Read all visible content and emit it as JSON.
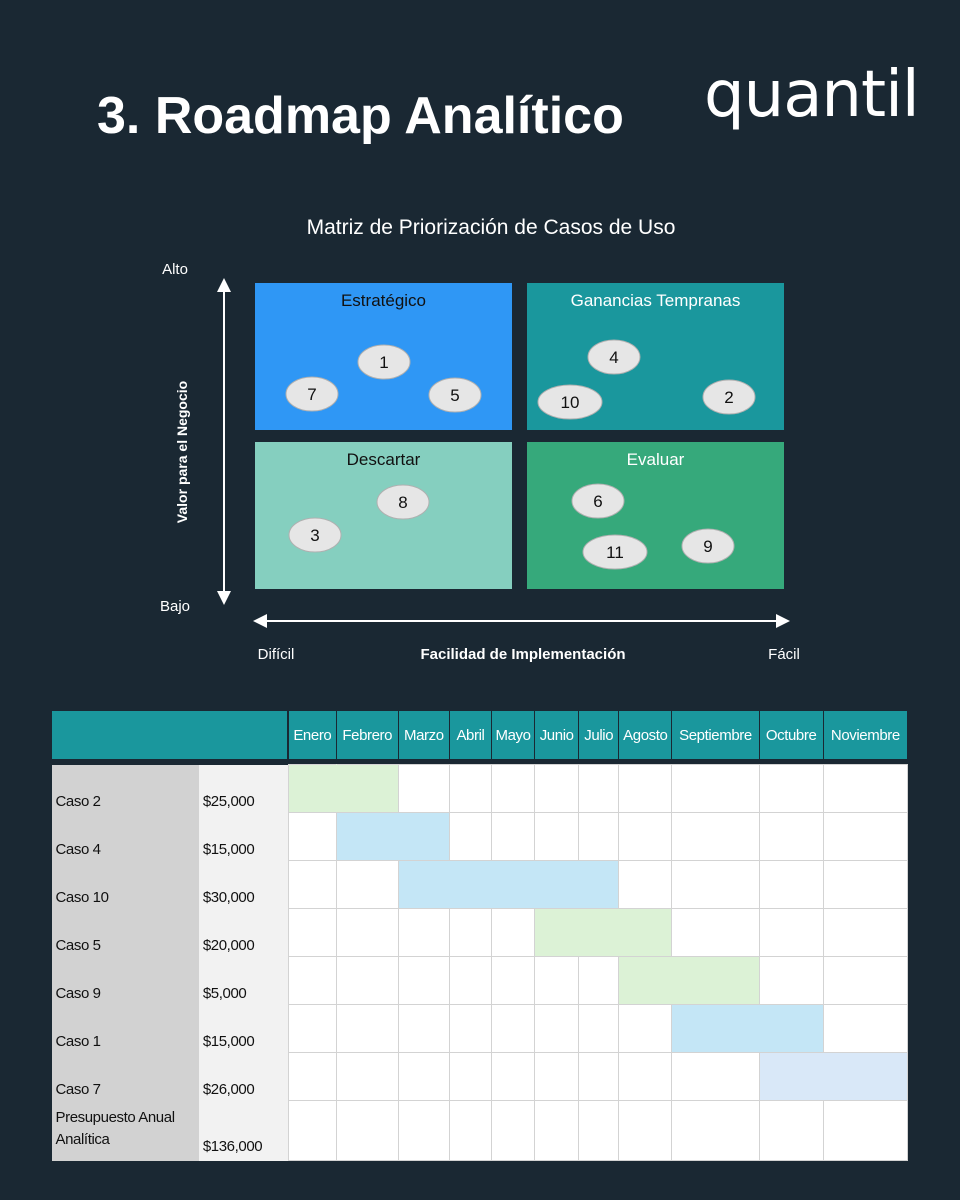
{
  "slide": {
    "title": "3. Roadmap Analítico",
    "logo_text": "quantil"
  },
  "chart_data": [
    {
      "type": "scatter",
      "title": "Matriz de Priorización de Casos de Uso",
      "xlabel": "Facilidad de Implementación",
      "ylabel": "Valor para el Negocio",
      "x_range_labels": [
        "Difícil",
        "Fácil"
      ],
      "y_range_labels": [
        "Bajo",
        "Alto"
      ],
      "quadrants": [
        {
          "name": "Estratégico",
          "position": "top-left",
          "color": "#2f97f5"
        },
        {
          "name": "Ganancias Tempranas",
          "position": "top-right",
          "color": "#1a979d"
        },
        {
          "name": "Descartar",
          "position": "bottom-left",
          "color": "#85cfbf"
        },
        {
          "name": "Evaluar",
          "position": "bottom-right",
          "color": "#36a97b"
        }
      ],
      "points": [
        {
          "label": "1",
          "quadrant": "Estratégico"
        },
        {
          "label": "7",
          "quadrant": "Estratégico"
        },
        {
          "label": "5",
          "quadrant": "Estratégico"
        },
        {
          "label": "4",
          "quadrant": "Ganancias Tempranas"
        },
        {
          "label": "10",
          "quadrant": "Ganancias Tempranas"
        },
        {
          "label": "2",
          "quadrant": "Ganancias Tempranas"
        },
        {
          "label": "8",
          "quadrant": "Descartar"
        },
        {
          "label": "3",
          "quadrant": "Descartar"
        },
        {
          "label": "6",
          "quadrant": "Evaluar"
        },
        {
          "label": "11",
          "quadrant": "Evaluar"
        },
        {
          "label": "9",
          "quadrant": "Evaluar"
        }
      ]
    },
    {
      "type": "table",
      "months": [
        "Enero",
        "Febrero",
        "Marzo",
        "Abril",
        "Mayo",
        "Junio",
        "Julio",
        "Agosto",
        "Septiembre",
        "Octubre",
        "Noviembre"
      ],
      "rows": [
        {
          "case": "Caso 2",
          "cost": "$25,000",
          "start_month": "Enero",
          "end_month": "Febrero",
          "color": "#dcf2d6"
        },
        {
          "case": "Caso 4",
          "cost": "$15,000",
          "start_month": "Febrero",
          "end_month": "Marzo",
          "color": "#c4e6f6"
        },
        {
          "case": "Caso 10",
          "cost": "$30,000",
          "start_month": "Marzo",
          "end_month": "Julio",
          "color": "#c4e6f6"
        },
        {
          "case": "Caso 5",
          "cost": "$20,000",
          "start_month": "Junio",
          "end_month": "Agosto",
          "color": "#dcf2d6"
        },
        {
          "case": "Caso 9",
          "cost": "$5,000",
          "start_month": "Agosto",
          "end_month": "Septiembre",
          "color": "#dcf2d6"
        },
        {
          "case": "Caso 1",
          "cost": "$15,000",
          "start_month": "Septiembre",
          "end_month": "Octubre",
          "color": "#c4e6f6"
        },
        {
          "case": "Caso 7",
          "cost": "$26,000",
          "start_month": "Octubre",
          "end_month": "Noviembre",
          "color": "#d9e8f8"
        }
      ],
      "total": {
        "label_line1": "Presupuesto Anual",
        "label_line2": "Analítica",
        "cost": "$136,000"
      }
    }
  ]
}
